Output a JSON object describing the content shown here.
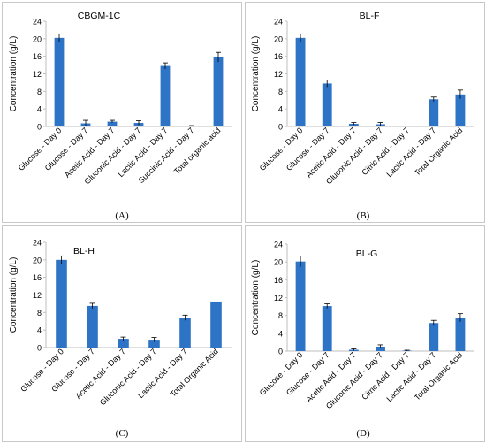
{
  "colors": {
    "bar": "#2e74c6",
    "axis": "#bfbfbf",
    "text": "#000000",
    "frame": "#c8c8c8"
  },
  "panels": [
    {
      "letter": "(A)"
    },
    {
      "letter": "(B)"
    },
    {
      "letter": "(C)"
    },
    {
      "letter": "(D)"
    }
  ],
  "chart_data": [
    {
      "type": "bar",
      "title": "CBGM-1C",
      "ylabel": "Concentration (g/L)",
      "xlabel": "",
      "ylim": [
        0,
        24
      ],
      "yticks": [
        0,
        4,
        8,
        12,
        16,
        20,
        24
      ],
      "grid": false,
      "categories": [
        "Glucose - Day 0",
        "Glucose - Day 7",
        "Acetic Acid - Day 7",
        "Gluconic Acid - Day 7",
        "Lactic Acid - Day 7",
        "Succinic Acid - Day 7",
        "Total organic acid"
      ],
      "values": [
        20.2,
        0.7,
        1.1,
        0.8,
        13.8,
        0.1,
        15.8
      ],
      "errors": [
        0.9,
        0.7,
        0.3,
        0.5,
        0.7,
        0.1,
        1.1
      ]
    },
    {
      "type": "bar",
      "title": "BL-F",
      "ylabel": "Concentration (g/L)",
      "xlabel": "",
      "ylim": [
        0,
        24
      ],
      "yticks": [
        0,
        4,
        8,
        12,
        16,
        20,
        24
      ],
      "grid": false,
      "categories": [
        "Glucose - Day 0",
        "Glucose - Day 7",
        "Acetic Acid - Day 7",
        "Gluconic Acid - Day 7",
        "Citric Acid - Day 7",
        "Lactic Acid - Day 7",
        "Total Organic Acid"
      ],
      "values": [
        20.2,
        9.8,
        0.6,
        0.5,
        0.0,
        6.2,
        7.3
      ],
      "errors": [
        0.9,
        0.8,
        0.3,
        0.4,
        0.0,
        0.5,
        1.0
      ]
    },
    {
      "type": "bar",
      "title": "BL-H",
      "ylabel": "Concentration (g/L)",
      "xlabel": "",
      "ylim": [
        0,
        24
      ],
      "yticks": [
        0,
        4,
        8,
        12,
        16,
        20,
        24
      ],
      "grid": false,
      "categories": [
        "Glucose - Day 0",
        "Glucose - Day 7",
        "Acetic Acid - Day 7",
        "Gluconic Acid - Day 7",
        "Lactic Acid - Day 7",
        "Total Organic Acid"
      ],
      "values": [
        20.0,
        9.5,
        2.0,
        1.8,
        6.8,
        10.5
      ],
      "errors": [
        0.9,
        0.6,
        0.4,
        0.5,
        0.6,
        1.5
      ]
    },
    {
      "type": "bar",
      "title": "BL-G",
      "ylabel": "Concentration (g/L)",
      "xlabel": "",
      "ylim": [
        0,
        24
      ],
      "yticks": [
        0,
        4,
        8,
        12,
        16,
        20,
        24
      ],
      "grid": false,
      "categories": [
        "Glucose - Day 0",
        "Glucose - Day 7",
        "Acetic Acid - Day 7",
        "Gluconic Acid - Day 7",
        "Citric Acid - Day 7",
        "Lactic Acid - Day 7",
        "Total Organic Acid"
      ],
      "values": [
        20.1,
        10.1,
        0.3,
        1.0,
        0.1,
        6.3,
        7.5
      ],
      "errors": [
        1.2,
        0.5,
        0.2,
        0.4,
        0.1,
        0.6,
        0.9
      ]
    }
  ]
}
